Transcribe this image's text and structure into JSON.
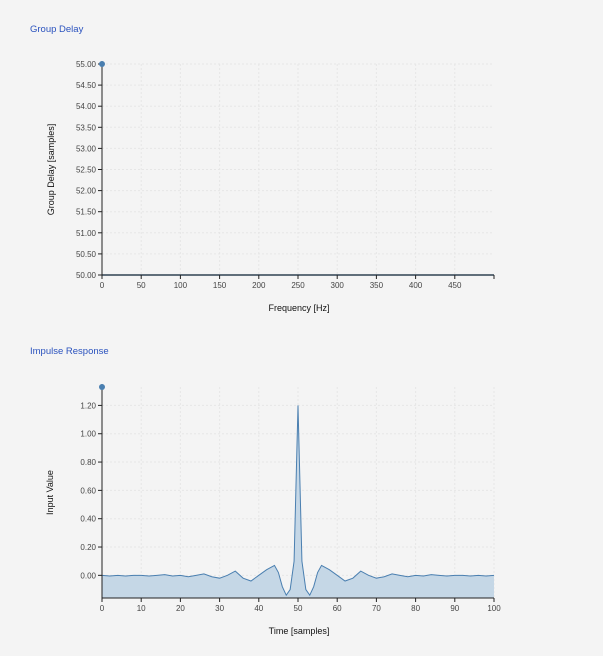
{
  "titles": {
    "group_delay": "Group Delay",
    "impulse_response": "Impulse Response"
  },
  "colors": {
    "accent": "#2a52be",
    "series": "#4a7fb0",
    "fill": "#c5d7e6",
    "background": "#f4f4f4"
  },
  "chart_data": [
    {
      "type": "line",
      "title": "Group Delay",
      "xlabel": "Frequency [Hz]",
      "ylabel": "Group Delay [samples]",
      "xlim": [
        0,
        500
      ],
      "ylim": [
        50.0,
        55.0
      ],
      "x_ticks": [
        "0",
        "50",
        "100",
        "150",
        "200",
        "250",
        "300",
        "350",
        "400",
        "450"
      ],
      "x_tick_values": [
        0,
        50,
        100,
        150,
        200,
        250,
        300,
        350,
        400,
        450
      ],
      "y_ticks": [
        "50.00",
        "50.50",
        "51.00",
        "51.50",
        "52.00",
        "52.50",
        "53.00",
        "53.50",
        "54.00",
        "54.50",
        "55.00"
      ],
      "y_tick_values": [
        50.0,
        50.5,
        51.0,
        51.5,
        52.0,
        52.5,
        53.0,
        53.5,
        54.0,
        54.5,
        55.0
      ],
      "grid": true,
      "series": [
        {
          "x": [
            0,
            500
          ],
          "y": [
            50.0,
            50.0
          ]
        }
      ],
      "marker": {
        "x": 0,
        "y": 55.0
      }
    },
    {
      "type": "area",
      "title": "Impulse Response",
      "xlabel": "Time [samples]",
      "ylabel": "Input Value",
      "xlim": [
        0,
        100
      ],
      "ylim": [
        -0.16,
        1.33
      ],
      "x_ticks": [
        "0",
        "10",
        "20",
        "30",
        "40",
        "50",
        "60",
        "70",
        "80",
        "90",
        "100"
      ],
      "x_tick_values": [
        0,
        10,
        20,
        30,
        40,
        50,
        60,
        70,
        80,
        90,
        100
      ],
      "y_ticks": [
        "0.00",
        "0.20",
        "0.40",
        "0.60",
        "0.80",
        "1.00",
        "1.20"
      ],
      "y_tick_values": [
        0.0,
        0.2,
        0.4,
        0.6,
        0.8,
        1.0,
        1.2
      ],
      "grid": true,
      "series": [
        {
          "x": [
            0,
            2,
            4,
            6,
            8,
            10,
            12,
            14,
            16,
            18,
            20,
            22,
            24,
            26,
            28,
            30,
            32,
            34,
            36,
            38,
            40,
            42,
            44,
            45,
            46,
            47,
            48,
            49,
            50,
            51,
            52,
            53,
            54,
            55,
            56,
            58,
            60,
            62,
            64,
            66,
            68,
            70,
            72,
            74,
            76,
            78,
            80,
            82,
            84,
            86,
            88,
            90,
            92,
            94,
            96,
            98,
            100
          ],
          "y": [
            0.0,
            -0.005,
            0.0,
            -0.005,
            0.0,
            0.0,
            -0.005,
            0.0,
            0.005,
            -0.005,
            0.0,
            -0.01,
            0.0,
            0.01,
            -0.01,
            -0.02,
            0.0,
            0.03,
            -0.02,
            -0.04,
            0.0,
            0.04,
            0.07,
            0.02,
            -0.08,
            -0.14,
            -0.1,
            0.1,
            1.2,
            0.1,
            -0.1,
            -0.14,
            -0.08,
            0.02,
            0.07,
            0.04,
            0.0,
            -0.04,
            -0.02,
            0.03,
            0.0,
            -0.02,
            -0.01,
            0.01,
            0.0,
            -0.01,
            0.0,
            -0.005,
            0.005,
            0.0,
            -0.005,
            0.0,
            0.0,
            -0.005,
            0.0,
            -0.005,
            0.0
          ]
        }
      ],
      "marker": {
        "x": 0,
        "y": 1.33
      }
    }
  ]
}
